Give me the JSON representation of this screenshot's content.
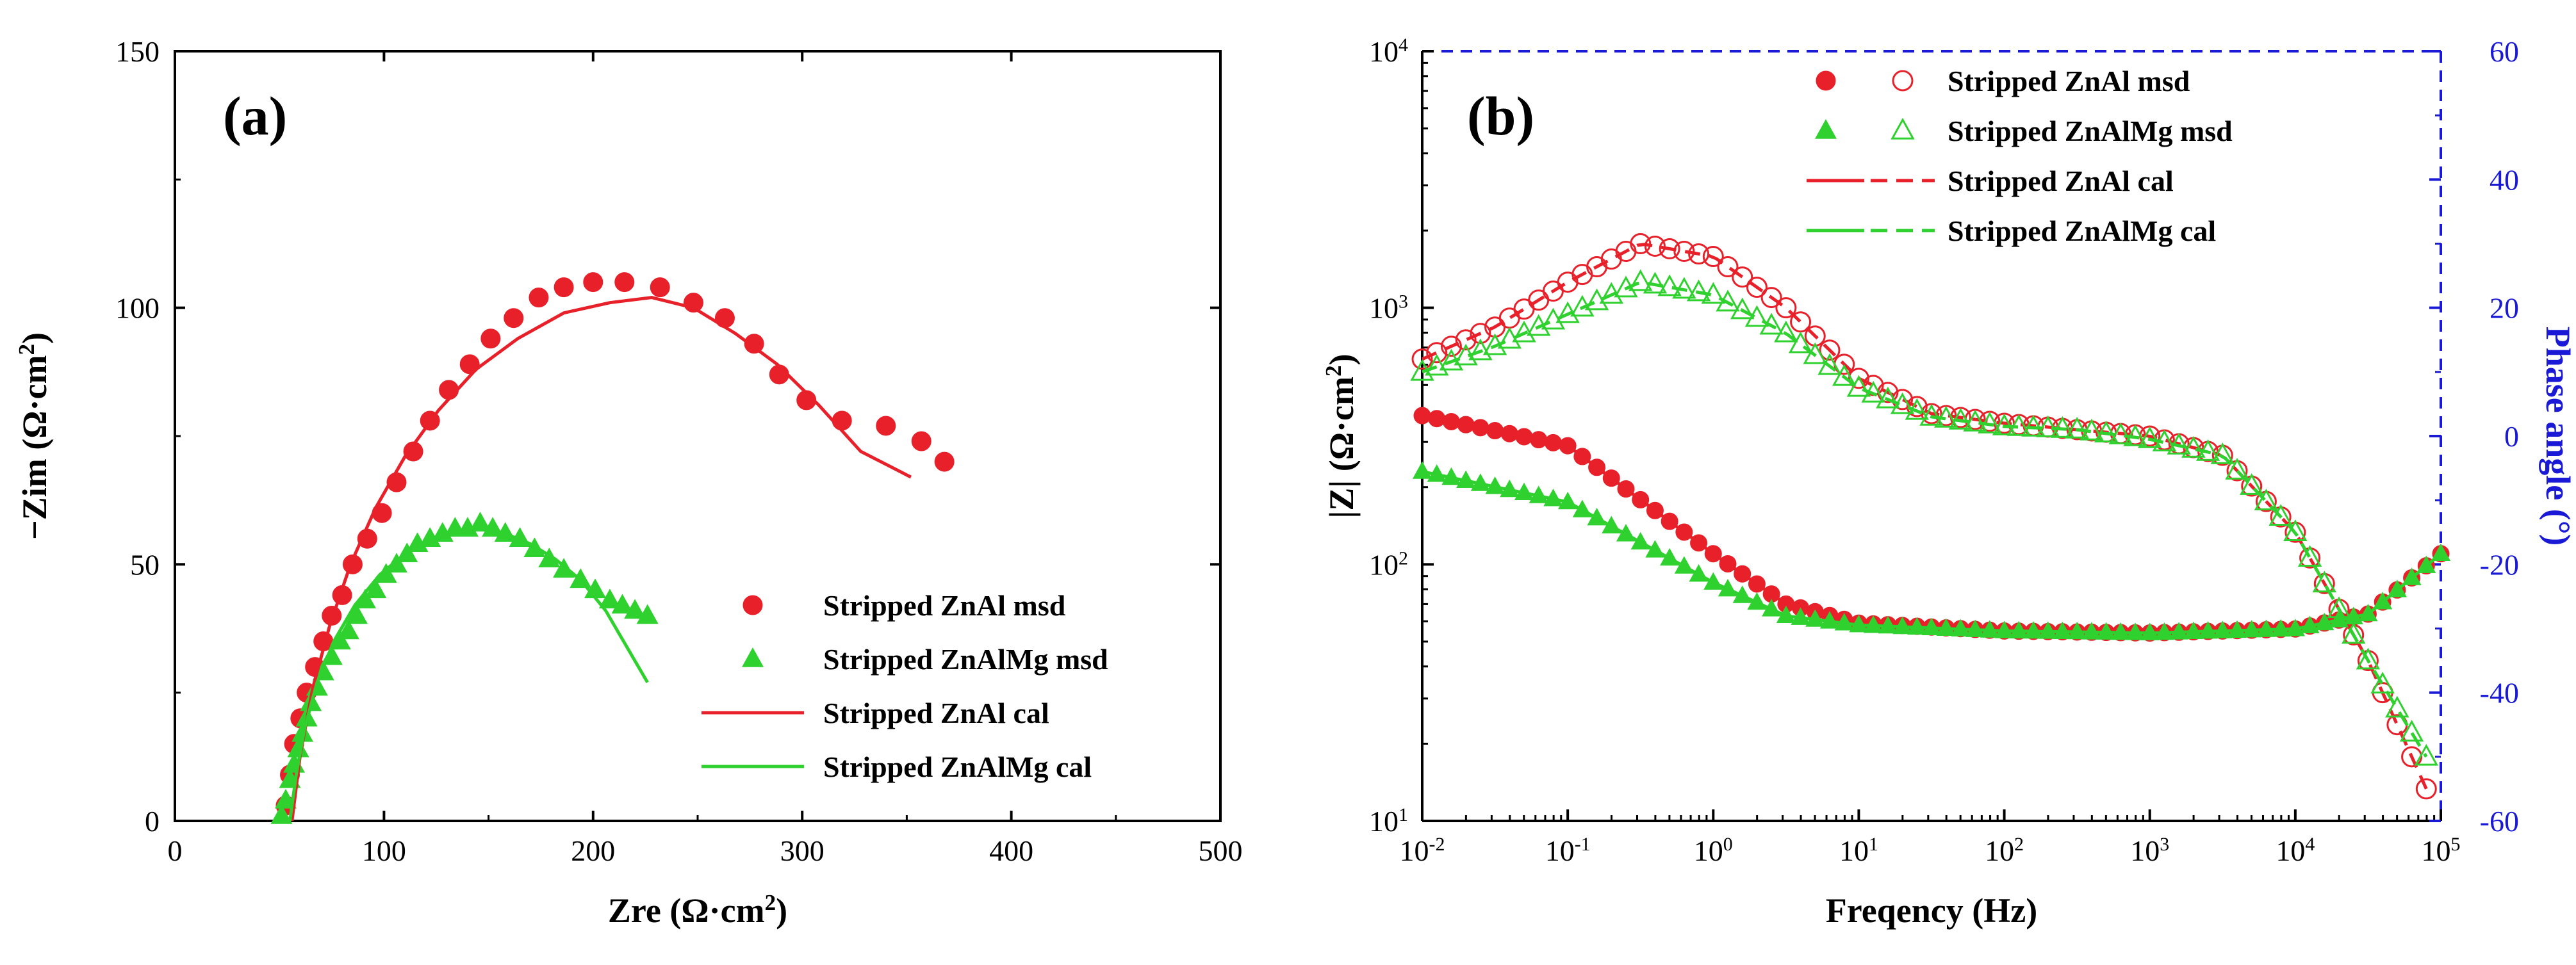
{
  "chart_data": [
    {
      "type": "scatter",
      "panel_label": "(a)",
      "xlabel": "Zre (Ω·cm",
      "xlabel_sup": "2",
      "xlabel_end": ")",
      "ylabel": "−Zim (Ω·cm",
      "ylabel_sup": "2",
      "ylabel_end": ")",
      "xlim": [
        0,
        500
      ],
      "ylim": [
        0,
        150
      ],
      "xticks": [
        "0",
        "100",
        "200",
        "300",
        "400",
        "500"
      ],
      "yticks": [
        "0",
        "50",
        "100",
        "150"
      ],
      "legend_position": "bottom-right",
      "series": [
        {
          "name": "Stripped ZnAl msd",
          "kind": "markers",
          "marker": "circle",
          "color": "#e8202a",
          "x": [
            53,
            55,
            57,
            60,
            63,
            67,
            71,
            75,
            80,
            85,
            92,
            99,
            106,
            114,
            122,
            131,
            141,
            151,
            162,
            174,
            186,
            200,
            215,
            232,
            248,
            263,
            277,
            289,
            302,
            319,
            340,
            357,
            368
          ],
          "y": [
            3,
            9,
            15,
            20,
            25,
            30,
            35,
            40,
            44,
            50,
            55,
            60,
            66,
            72,
            78,
            84,
            89,
            94,
            98,
            102,
            104,
            105,
            105,
            104,
            101,
            98,
            93,
            87,
            82,
            78,
            77,
            74,
            70
          ]
        },
        {
          "name": "Stripped ZnAlMg msd",
          "kind": "markers",
          "marker": "triangle",
          "color": "#2fd12f",
          "x": [
            51,
            53,
            55,
            57,
            59,
            61,
            63,
            65,
            68,
            71,
            75,
            79,
            83,
            87,
            91,
            96,
            101,
            106,
            111,
            116,
            122,
            128,
            134,
            140,
            146,
            152,
            158,
            165,
            172,
            179,
            186,
            194,
            201,
            208,
            214,
            220,
            226
          ],
          "y": [
            1,
            4,
            8,
            11,
            14,
            17,
            20,
            23,
            26,
            29,
            32,
            35,
            37,
            40,
            43,
            45,
            48,
            50,
            52,
            54,
            55,
            56,
            57,
            57,
            58,
            57,
            56,
            55,
            53,
            51,
            49,
            47,
            45,
            43,
            42,
            41,
            40
          ]
        },
        {
          "name": "Stripped ZnAl cal",
          "kind": "line",
          "color": "#e8202a",
          "x": [
            56,
            60,
            66,
            74,
            84,
            96,
            110,
            126,
            144,
            164,
            186,
            208,
            228,
            248,
            268,
            288,
            308,
            328,
            352
          ],
          "y": [
            0,
            13,
            26,
            38,
            50,
            61,
            71,
            80,
            88,
            94,
            99,
            101,
            102,
            100,
            95,
            89,
            81,
            72,
            67
          ]
        },
        {
          "name": "Stripped ZnAlMg cal",
          "kind": "line",
          "color": "#2fd12f",
          "x": [
            55,
            58,
            62,
            68,
            76,
            86,
            98,
            110,
            122,
            134,
            146,
            158,
            170,
            182,
            194,
            206,
            216,
            226
          ],
          "y": [
            0,
            9,
            18,
            27,
            35,
            42,
            48,
            52,
            55,
            56.5,
            57,
            56,
            54,
            51,
            47,
            41,
            34,
            27
          ]
        }
      ]
    },
    {
      "type": "line",
      "panel_label": "(b)",
      "xlabel": "Freqency (Hz)",
      "ylabel": "|Z| (Ω·cm",
      "ylabel_sup": "2",
      "ylabel_end": ")",
      "y2label": "Phase angle (°)",
      "xscale": "log",
      "yscale": "log",
      "xlim": [
        0.01,
        100000
      ],
      "ylim": [
        10,
        10000
      ],
      "y2lim": [
        -60,
        60
      ],
      "xticks": [
        {
          "base": "10",
          "exp": "-2"
        },
        {
          "base": "10",
          "exp": "-1"
        },
        {
          "base": "10",
          "exp": "0"
        },
        {
          "base": "10",
          "exp": "1"
        },
        {
          "base": "10",
          "exp": "2"
        },
        {
          "base": "10",
          "exp": "3"
        },
        {
          "base": "10",
          "exp": "4"
        },
        {
          "base": "10",
          "exp": "5"
        }
      ],
      "yticks": [
        {
          "base": "10",
          "exp": "1"
        },
        {
          "base": "10",
          "exp": "2"
        },
        {
          "base": "10",
          "exp": "3"
        },
        {
          "base": "10",
          "exp": "4"
        }
      ],
      "y2ticks": [
        "60",
        "40",
        "20",
        "0",
        "-20",
        "-40",
        "-60"
      ],
      "right_axis_color": "#1a1ad6",
      "legend_position": "top-center",
      "series": [
        {
          "name": "Stripped ZnAl msd",
          "axis": "left",
          "legend_markers": [
            "filled-circle",
            "open-circle"
          ],
          "color": "#e8202a",
          "log10_freq": [
            -2,
            -1,
            0,
            0.5,
            1,
            2,
            3,
            4,
            4.5,
            5
          ],
          "modulus_ohm_cm2": [
            380,
            290,
            110,
            70,
            59,
            55,
            54,
            56,
            64,
            110
          ],
          "phase_log10_freq": [
            -2,
            -1.5,
            -1,
            -0.5,
            0,
            0.5,
            1,
            1.5,
            2,
            2.5,
            3,
            3.5,
            4,
            4.5,
            4.9
          ],
          "phase_deg": [
            12,
            17,
            24,
            30,
            28,
            20,
            9,
            3.5,
            2,
            1,
            0,
            -3,
            -15,
            -35,
            -55
          ]
        },
        {
          "name": "Stripped ZnAlMg msd",
          "axis": "left",
          "legend_markers": [
            "filled-triangle",
            "open-triangle"
          ],
          "color": "#2fd12f",
          "log10_freq": [
            -2,
            -1,
            0,
            0.5,
            1,
            2,
            3,
            4,
            4.5,
            5
          ],
          "modulus_ohm_cm2": [
            230,
            175,
            85,
            63,
            58,
            55,
            54,
            56,
            64,
            110
          ],
          "phase_log10_freq": [
            -2,
            -1.5,
            -1,
            -0.5,
            0,
            0.5,
            1,
            1.5,
            2,
            2.5,
            3,
            3.5,
            4,
            4.5,
            4.9
          ],
          "phase_deg": [
            10,
            14,
            19,
            24,
            22,
            16,
            7.5,
            3,
            1.5,
            1,
            -0.5,
            -3,
            -15,
            -35,
            -50
          ]
        },
        {
          "name": "Stripped ZnAl cal",
          "kind": "line",
          "legend_style": [
            "solid",
            "dashed"
          ],
          "color": "#e8202a"
        },
        {
          "name": "Stripped ZnAlMg cal",
          "kind": "line",
          "legend_style": [
            "solid",
            "dashed"
          ],
          "color": "#2fd12f"
        }
      ]
    }
  ]
}
